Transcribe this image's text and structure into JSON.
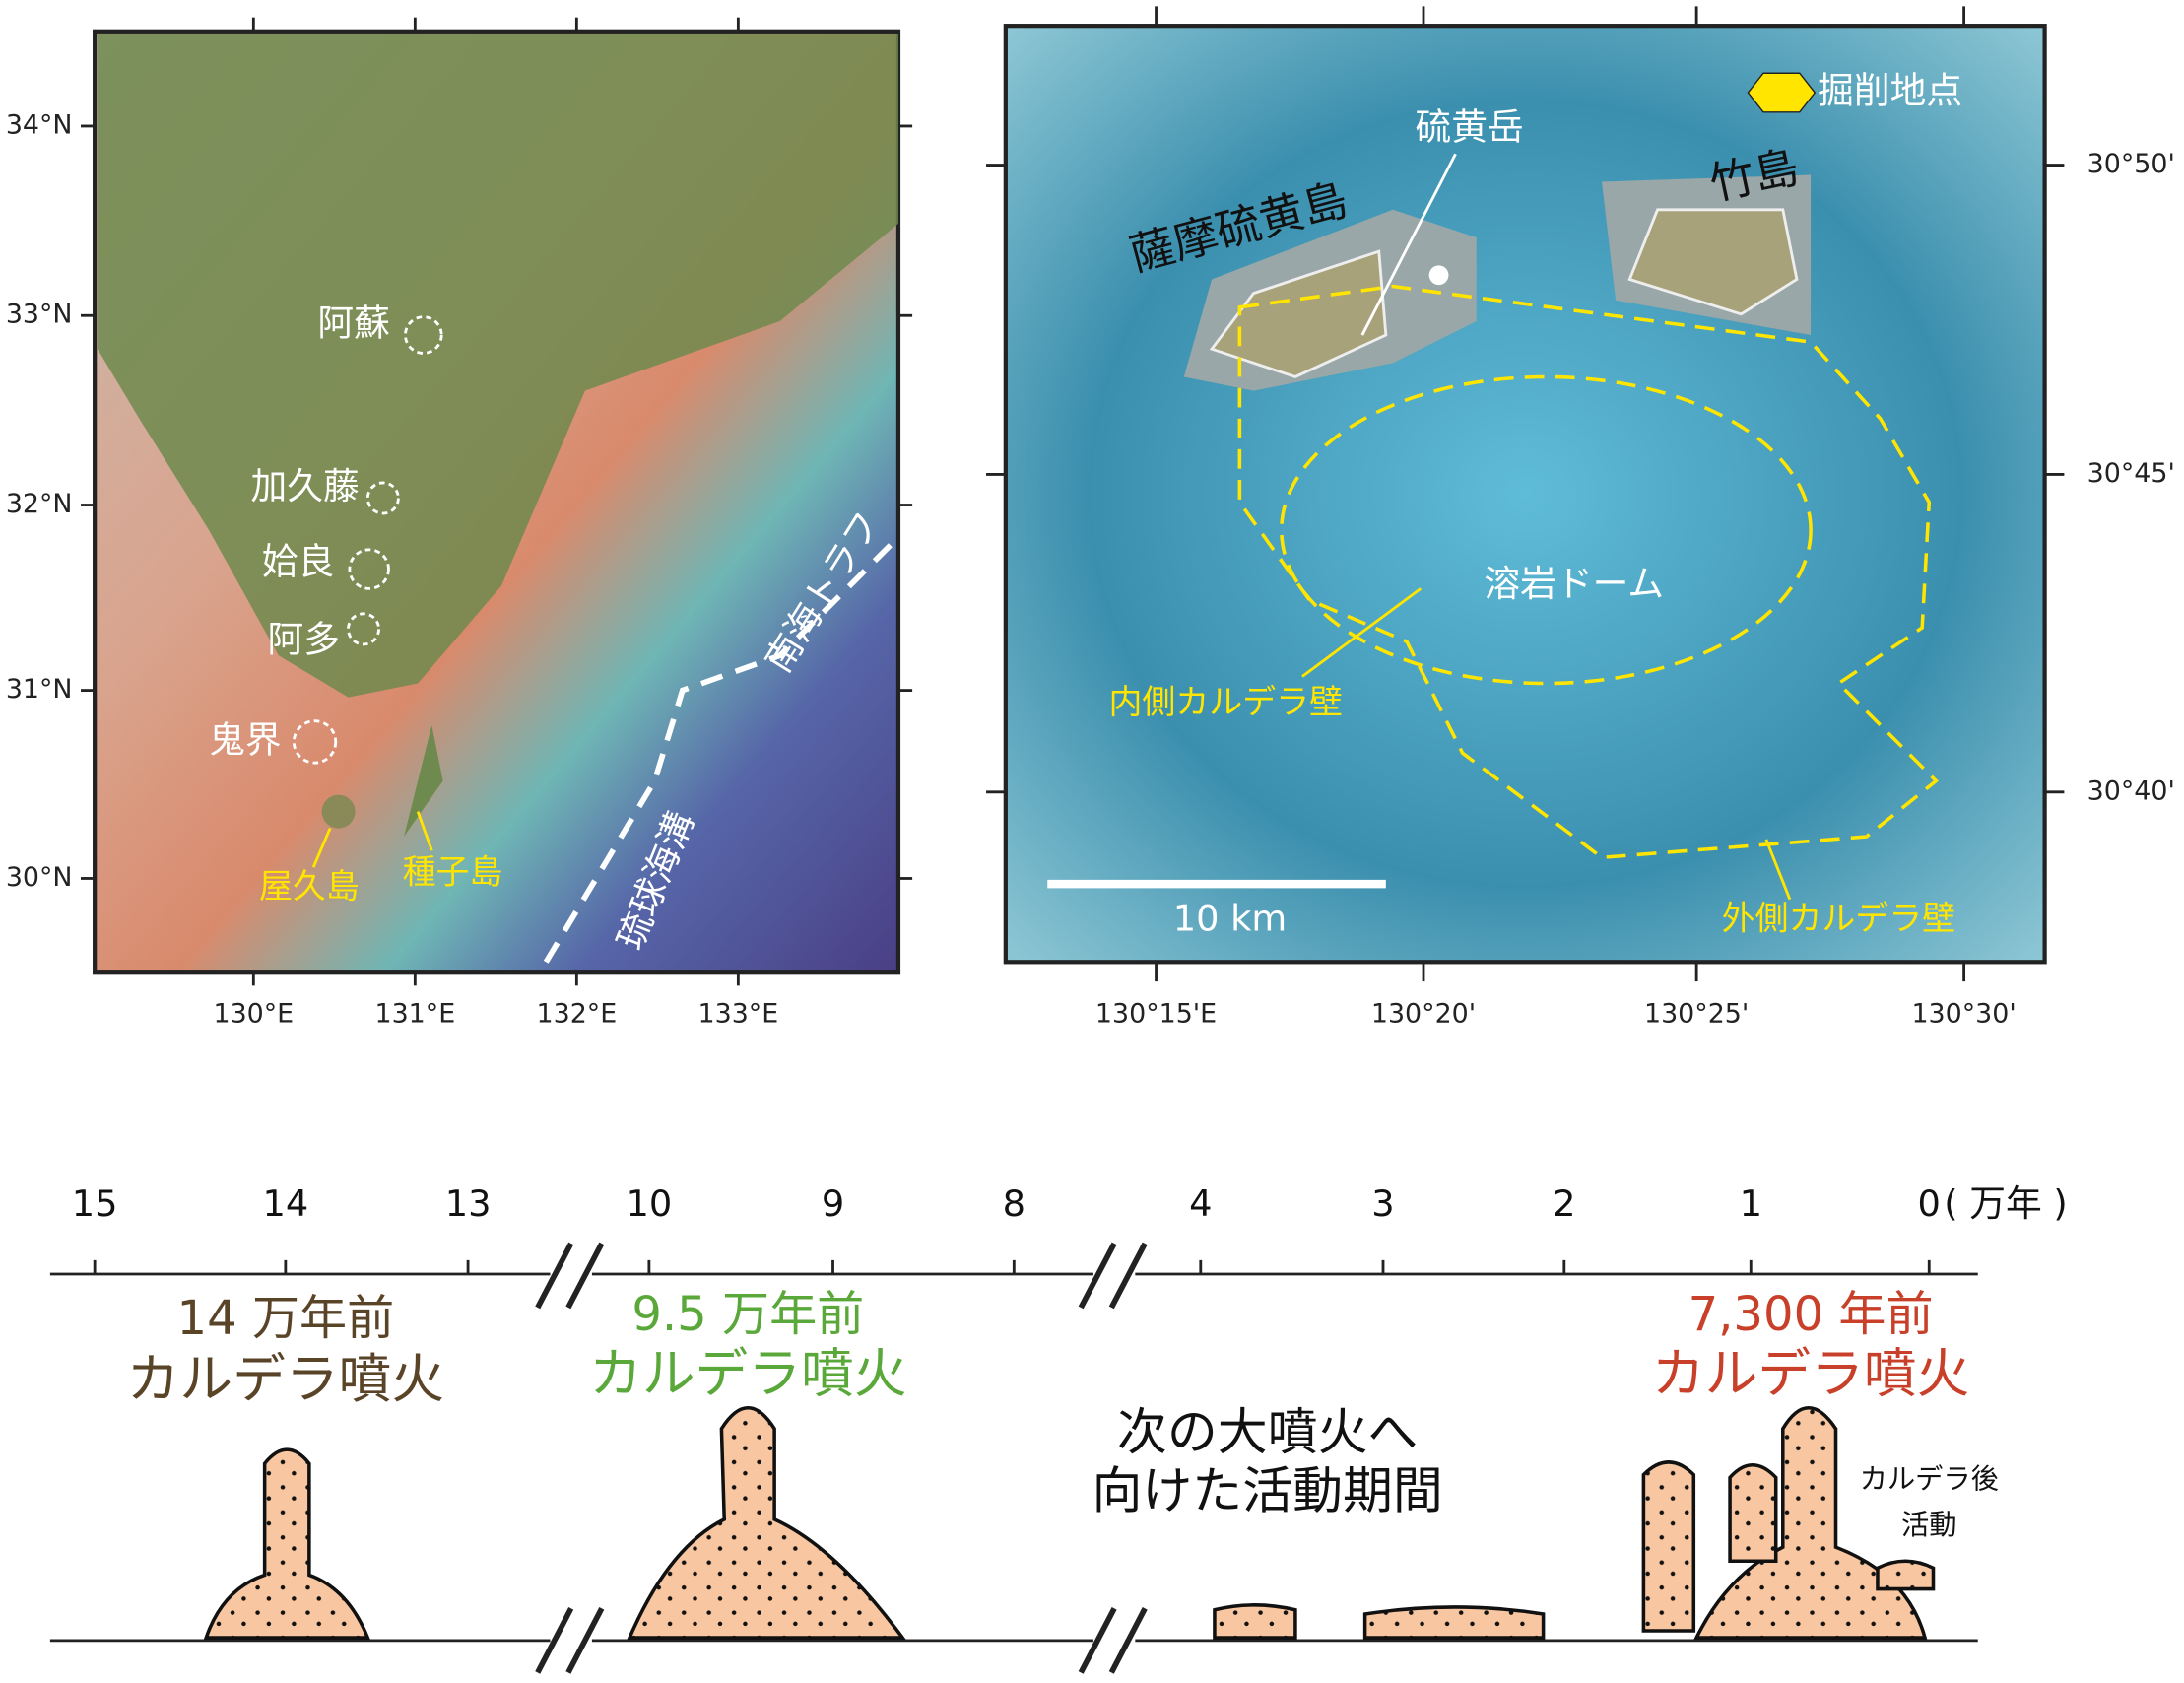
{
  "left_map": {
    "lat_labels": [
      "34°N",
      "33°N",
      "32°N",
      "31°N",
      "30°N"
    ],
    "lon_labels": [
      "130°E",
      "131°E",
      "132°E",
      "133°E"
    ],
    "volcanoes": [
      "阿蘇",
      "加久藤",
      "姶良",
      "阿多",
      "鬼界"
    ],
    "islands": [
      "屋久島",
      "種子島"
    ],
    "trenches": [
      "南海トラフ",
      "琉球海溝"
    ]
  },
  "right_map": {
    "legend": "掘削地点",
    "lat_labels": [
      "30°50'",
      "30°45'",
      "30°40'"
    ],
    "lon_labels": [
      "130°15'E",
      "130°20'",
      "130°25'",
      "130°30'"
    ],
    "peak": "硫黄岳",
    "islands": [
      "竹島",
      "薩摩硫黄島"
    ],
    "dome": "溶岩ドーム",
    "inner_wall": "内側カルデラ壁",
    "outer_wall": "外側カルデラ壁",
    "scale_bar": "10 km"
  },
  "timeline": {
    "ticks": [
      15,
      14,
      13,
      10,
      9,
      8,
      4,
      3,
      2,
      1,
      0
    ],
    "unit": "( 万年 )",
    "events": [
      {
        "age": "14 万年前",
        "label": "カルデラ噴火"
      },
      {
        "age": "9.5 万年前",
        "label": "カルデラ噴火"
      },
      {
        "age": "7,300 年前",
        "label": "カルデラ噴火"
      }
    ],
    "note": [
      "次の大噴火へ",
      "向けた活動期間"
    ],
    "post_caldera": [
      "カルデラ後",
      "活動"
    ]
  }
}
